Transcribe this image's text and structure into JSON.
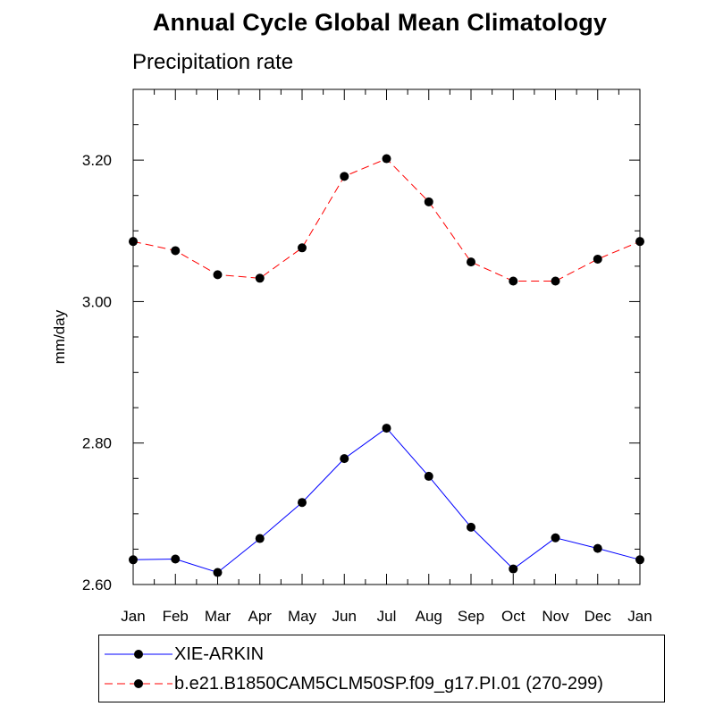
{
  "chart_data": {
    "type": "line",
    "title": "Annual Cycle Global Mean Climatology",
    "subtitle": "Precipitation rate",
    "xlabel": "",
    "ylabel": "mm/day",
    "categories": [
      "Jan",
      "Feb",
      "Mar",
      "Apr",
      "May",
      "Jun",
      "Jul",
      "Aug",
      "Sep",
      "Oct",
      "Nov",
      "Dec",
      "Jan"
    ],
    "ylim": [
      2.6,
      3.3
    ],
    "yticks": [
      "2.60",
      "2.80",
      "3.00",
      "3.20"
    ],
    "series": [
      {
        "name": "XIE-ARKIN",
        "color": "#0000ff",
        "dash": "solid",
        "values": [
          2.635,
          2.636,
          2.617,
          2.665,
          2.716,
          2.778,
          2.821,
          2.753,
          2.681,
          2.622,
          2.666,
          2.651,
          2.635
        ]
      },
      {
        "name": "b.e21.B1850CAM5CLM50SP.f09_g17.PI.01 (270-299)",
        "color": "#ff0000",
        "dash": "dashed",
        "values": [
          3.085,
          3.072,
          3.038,
          3.033,
          3.076,
          3.177,
          3.202,
          3.141,
          3.056,
          3.029,
          3.029,
          3.06,
          3.085
        ]
      }
    ],
    "legend": "bottom"
  }
}
